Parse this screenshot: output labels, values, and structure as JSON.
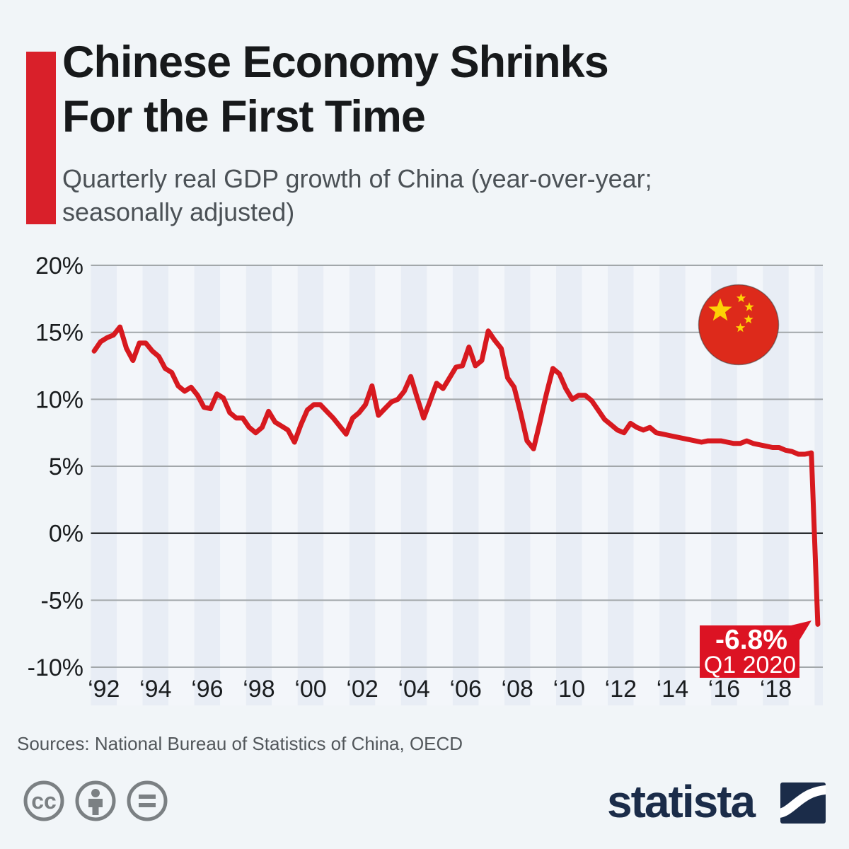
{
  "header": {
    "accent_color": "#d9202a",
    "title_line1": "Chinese Economy Shrinks",
    "title_line2": "For the First Time",
    "subtitle_line1": "Quarterly real GDP growth of China (year-over-year;",
    "subtitle_line2": "seasonally adjusted)"
  },
  "chart_data": {
    "type": "line",
    "title": "Quarterly real GDP growth of China (year-over-year; seasonally adjusted)",
    "unit": "percent",
    "frequency": "quarterly",
    "period_start": "1992-Q1",
    "period_end": "2020-Q1",
    "ylim": [
      -10,
      20
    ],
    "grid": true,
    "legend_position": "none",
    "y_ticks": [
      {
        "value": 20,
        "label": "20%"
      },
      {
        "value": 15,
        "label": "15%"
      },
      {
        "value": 10,
        "label": "10%"
      },
      {
        "value": 5,
        "label": "5%"
      },
      {
        "value": 0,
        "label": "0%"
      },
      {
        "value": -5,
        "label": "-5%"
      },
      {
        "value": -10,
        "label": "-10%"
      }
    ],
    "x_ticks": [
      {
        "year": 1992,
        "label": "‘92"
      },
      {
        "year": 1994,
        "label": "‘94"
      },
      {
        "year": 1996,
        "label": "‘96"
      },
      {
        "year": 1998,
        "label": "‘98"
      },
      {
        "year": 2000,
        "label": "‘00"
      },
      {
        "year": 2002,
        "label": "‘02"
      },
      {
        "year": 2004,
        "label": "‘04"
      },
      {
        "year": 2006,
        "label": "‘06"
      },
      {
        "year": 2008,
        "label": "‘08"
      },
      {
        "year": 2010,
        "label": "‘10"
      },
      {
        "year": 2012,
        "label": "‘12"
      },
      {
        "year": 2014,
        "label": "‘14"
      },
      {
        "year": 2016,
        "label": "‘16"
      },
      {
        "year": 2018,
        "label": "‘18"
      }
    ],
    "series": [
      {
        "name": "China real GDP growth, year-over-year %, quarterly from 1992-Q1 to 2020-Q1",
        "color": "#d7191f",
        "values": [
          13.6,
          14.3,
          14.6,
          14.8,
          15.4,
          13.8,
          12.9,
          14.2,
          14.2,
          13.6,
          13.2,
          12.3,
          12.0,
          11.0,
          10.6,
          10.9,
          10.3,
          9.4,
          9.3,
          10.4,
          10.1,
          9.0,
          8.6,
          8.6,
          7.9,
          7.5,
          7.9,
          9.1,
          8.3,
          8.0,
          7.7,
          6.8,
          8.1,
          9.2,
          9.6,
          9.6,
          9.1,
          8.6,
          8.0,
          7.4,
          8.6,
          9.0,
          9.6,
          11.0,
          8.8,
          9.3,
          9.8,
          10.0,
          10.6,
          11.7,
          10.1,
          8.6,
          9.9,
          11.2,
          10.8,
          11.6,
          12.4,
          12.5,
          13.9,
          12.5,
          12.9,
          15.1,
          14.4,
          13.8,
          11.6,
          10.9,
          9.0,
          6.9,
          6.3,
          8.3,
          10.4,
          12.3,
          11.9,
          10.8,
          10.0,
          10.3,
          10.3,
          9.9,
          9.2,
          8.5,
          8.1,
          7.7,
          7.5,
          8.2,
          7.9,
          7.7,
          7.9,
          7.5,
          7.4,
          7.3,
          7.2,
          7.1,
          7.0,
          6.9,
          6.8,
          6.9,
          6.9,
          6.9,
          6.8,
          6.7,
          6.7,
          6.9,
          6.7,
          6.6,
          6.5,
          6.4,
          6.4,
          6.2,
          6.1,
          5.9,
          5.9,
          6.0,
          -6.8
        ]
      }
    ],
    "annotation": {
      "value_label": "-6.8%",
      "period_label": "Q1 2020",
      "box_color": "#dc1323",
      "text_color": "#ffffff"
    },
    "stripe_colors": {
      "even_year": "#e8edf5",
      "odd_year": "#f3f6fa"
    },
    "zero_line_color": "#2b2e31",
    "grid_color": "#a2a7aa",
    "axis_text_color": "#191c1e",
    "flag_icon": "china-flag",
    "flag_colors": {
      "red": "#dd2a1b",
      "yellow": "#fdd205"
    }
  },
  "footer": {
    "sources": "Sources: National Bureau of Statistics of China, OECD",
    "license_icons": [
      "cc",
      "by",
      "nd"
    ],
    "brand": "statista",
    "brand_color": "#1b2c49"
  }
}
